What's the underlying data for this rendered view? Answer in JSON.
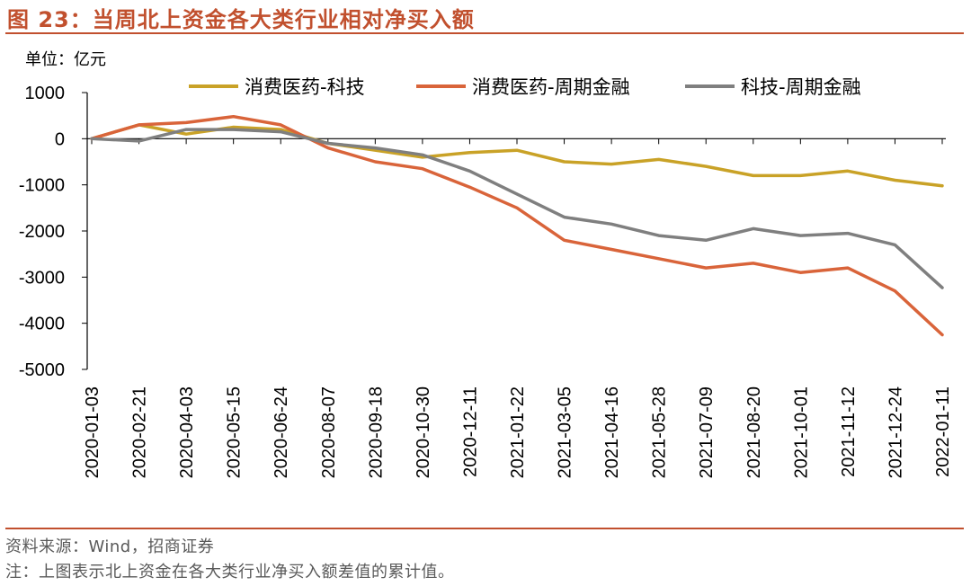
{
  "figure": {
    "title": "图 23：当周北上资金各大类行业相对净买入额",
    "unit_label": "单位：亿元",
    "source": "资料来源：Wind，招商证券",
    "note": "注：上图表示北上资金在各大类行业净买入额差值的累计值。"
  },
  "colors": {
    "title": "#c1502e",
    "rule": "#c1502e",
    "series": [
      "#c9a227",
      "#d9643a",
      "#7f7f7f"
    ]
  },
  "chart_data": {
    "type": "line",
    "title": "当周北上资金各大类行业相对净买入额",
    "ylabel": "单位：亿元",
    "xlabel": "",
    "ylim": [
      -5000,
      1000
    ],
    "yticks": [
      "1000",
      "0",
      "-1000",
      "-2000",
      "-3000",
      "-4000",
      "-5000"
    ],
    "xticks": [
      "2020-01-03",
      "2020-02-21",
      "2020-04-03",
      "2020-05-15",
      "2020-06-24",
      "2020-08-07",
      "2020-09-18",
      "2020-10-30",
      "2020-12-11",
      "2021-01-22",
      "2021-03-05",
      "2021-04-16",
      "2021-05-28",
      "2021-07-09",
      "2021-08-20",
      "2021-10-01",
      "2021-11-12",
      "2021-12-24",
      "2022-01-11"
    ],
    "grid": false,
    "legend": "top",
    "x": [
      "2020-01-03",
      "2020-02-21",
      "2020-04-03",
      "2020-05-15",
      "2020-06-24",
      "2020-08-07",
      "2020-09-18",
      "2020-10-30",
      "2020-12-11",
      "2021-01-22",
      "2021-03-05",
      "2021-04-16",
      "2021-05-28",
      "2021-07-09",
      "2021-08-20",
      "2021-10-01",
      "2021-11-12",
      "2021-12-24",
      "2022-01-11"
    ],
    "series": [
      {
        "name": "消费医药-科技",
        "values": [
          0,
          300,
          100,
          250,
          200,
          -100,
          -250,
          -400,
          -300,
          -250,
          -500,
          -550,
          -450,
          -600,
          -800,
          -800,
          -700,
          -900,
          -1020
        ]
      },
      {
        "name": "消费医药-周期金融",
        "values": [
          0,
          300,
          350,
          480,
          300,
          -200,
          -500,
          -650,
          -1050,
          -1500,
          -2200,
          -2400,
          -2600,
          -2800,
          -2700,
          -2900,
          -2800,
          -3300,
          -4250
        ]
      },
      {
        "name": "科技-周期金融",
        "values": [
          0,
          -50,
          200,
          200,
          150,
          -100,
          -200,
          -350,
          -700,
          -1200,
          -1700,
          -1850,
          -2100,
          -2200,
          -1950,
          -2100,
          -2050,
          -2300,
          -3230
        ]
      }
    ]
  }
}
